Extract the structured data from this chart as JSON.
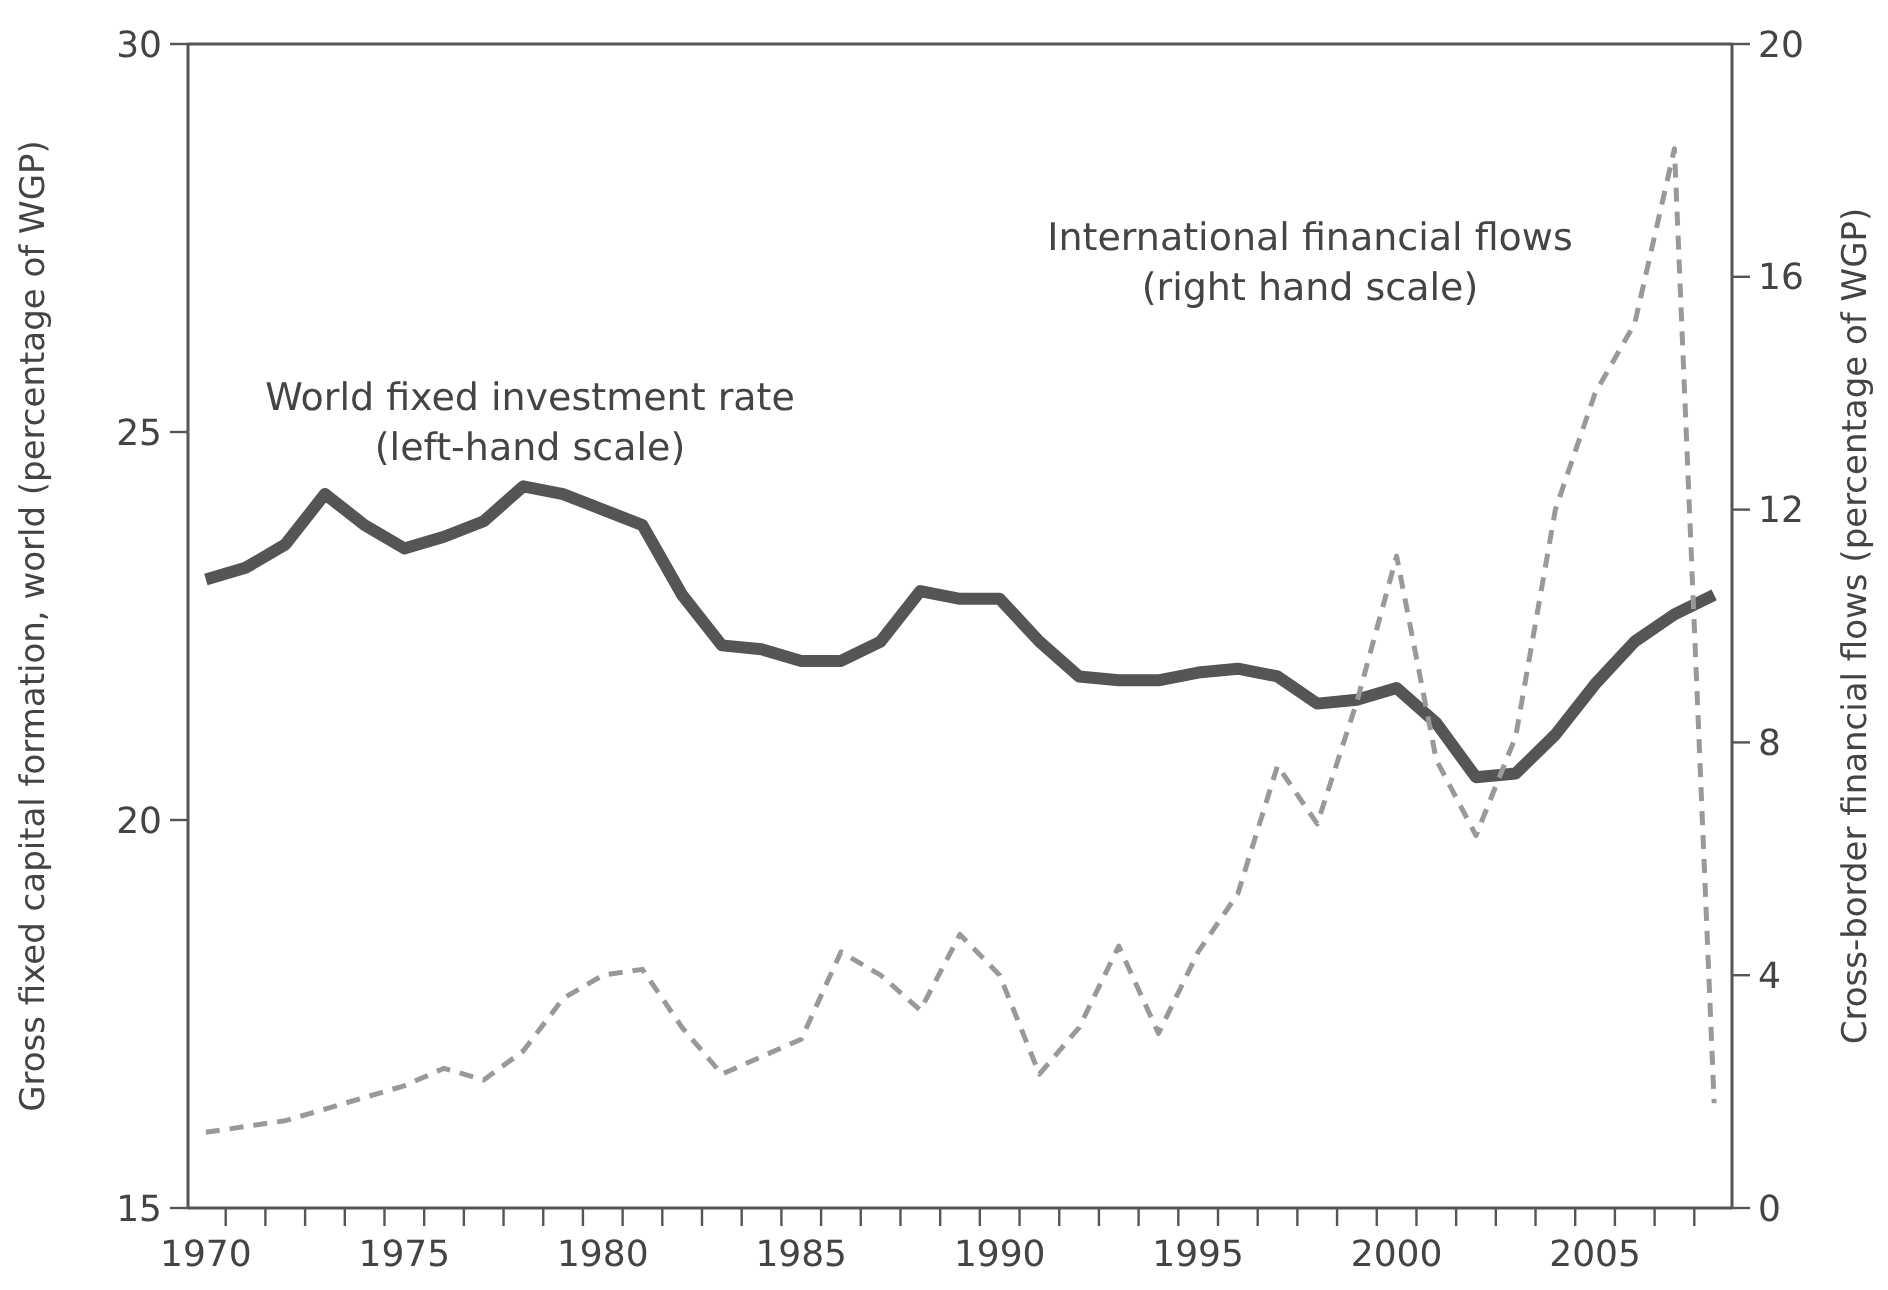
{
  "chart_data": {
    "type": "line",
    "ylabel": "Gross fixed capital formation, world (percentage of WGP)",
    "y2label": "Cross-border financial flows (percentage of WGP)",
    "x": [
      1970,
      1971,
      1972,
      1973,
      1974,
      1975,
      1976,
      1977,
      1978,
      1979,
      1980,
      1981,
      1982,
      1983,
      1984,
      1985,
      1986,
      1987,
      1988,
      1989,
      1990,
      1991,
      1992,
      1993,
      1994,
      1995,
      1996,
      1997,
      1998,
      1999,
      2000,
      2001,
      2002,
      2003,
      2004,
      2005,
      2006,
      2007,
      2008
    ],
    "series": [
      {
        "name": "World fixed investment rate (left-hand scale)",
        "color": "#555555",
        "line_style": "solid",
        "values": [
          23.1,
          23.25,
          23.55,
          24.2,
          23.8,
          23.5,
          23.65,
          23.85,
          24.3,
          24.2,
          24.0,
          23.8,
          22.9,
          22.25,
          22.2,
          22.05,
          22.05,
          22.3,
          22.95,
          22.85,
          22.85,
          22.3,
          21.85,
          21.8,
          21.8,
          21.9,
          21.95,
          21.85,
          21.5,
          21.55,
          21.7,
          21.25,
          20.55,
          20.6,
          21.1,
          21.75,
          22.3,
          22.65,
          22.9
        ]
      },
      {
        "name": "International financial flows (right hand scale)",
        "color": "#999999",
        "line_style": "dashed",
        "axis": "y2",
        "values": [
          1.3,
          1.4,
          1.5,
          1.7,
          1.9,
          2.1,
          2.4,
          2.2,
          2.7,
          3.6,
          4.0,
          4.1,
          3.1,
          2.3,
          2.6,
          2.9,
          4.4,
          4.0,
          3.4,
          4.7,
          4.0,
          2.3,
          3.1,
          4.5,
          3.0,
          4.4,
          5.4,
          7.6,
          6.6,
          8.7,
          11.2,
          7.7,
          6.4,
          8.1,
          12.0,
          14.0,
          15.2,
          18.2,
          1.8
        ]
      }
    ],
    "xlim": [
      1969.55,
      2008.45
    ],
    "xticks": [
      1970,
      1975,
      1980,
      1985,
      1990,
      1995,
      2000,
      2005
    ],
    "ylim": [
      15,
      30
    ],
    "yticks": [
      15,
      20,
      25,
      30
    ],
    "y2lim": [
      0,
      20
    ],
    "y2ticks": [
      0,
      4,
      8,
      12,
      16,
      20
    ],
    "grid": false,
    "marker": "none"
  }
}
